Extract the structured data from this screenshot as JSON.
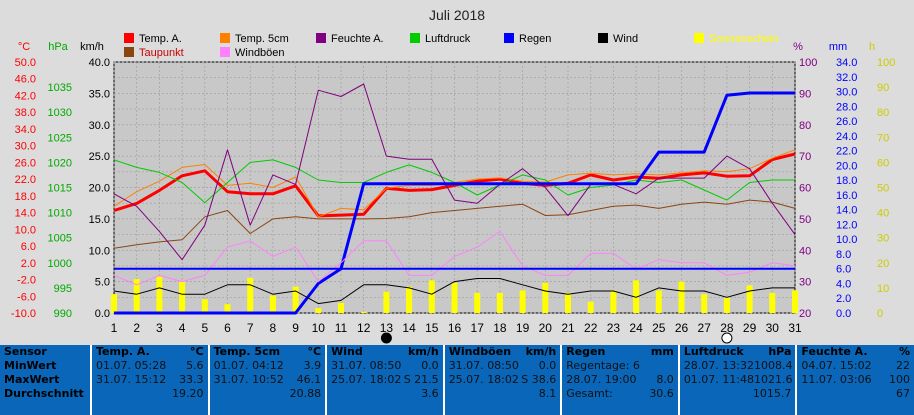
{
  "chart_data": {
    "type": "line",
    "title": "Juli 2018",
    "days": [
      1,
      2,
      3,
      4,
      5,
      6,
      7,
      8,
      9,
      10,
      11,
      12,
      13,
      14,
      15,
      16,
      17,
      18,
      19,
      20,
      21,
      22,
      23,
      24,
      25,
      26,
      27,
      28,
      29,
      30,
      31
    ],
    "axes": {
      "temp": {
        "unit": "°C",
        "min": -10,
        "max": 50,
        "ticks": [
          "50.0",
          "46.0",
          "42.0",
          "38.0",
          "34.0",
          "30.0",
          "26.0",
          "22.0",
          "18.0",
          "14.0",
          "10.0",
          "6.0",
          "2.0",
          "-2.0",
          "-6.0",
          "-10.0"
        ],
        "color": "#ff0000"
      },
      "pressure": {
        "unit": "hPa",
        "min": 990,
        "max": 1040,
        "ticks": [
          "1035",
          "1030",
          "1025",
          "1020",
          "1015",
          "1010",
          "1005",
          "1000",
          "995",
          "990"
        ],
        "color": "#00aa00"
      },
      "wind": {
        "unit": "km/h",
        "min": 0,
        "max": 40,
        "ticks": [
          "40.0",
          "35.0",
          "30.0",
          "25.0",
          "20.0",
          "15.0",
          "10.0",
          "5.0",
          "0.0"
        ],
        "color": "#000000"
      },
      "humidity": {
        "unit": "%",
        "min": 20,
        "max": 100,
        "ticks": [
          "100",
          "90",
          "80",
          "70",
          "60",
          "50",
          "40",
          "30",
          "20"
        ],
        "color": "#800080"
      },
      "rain": {
        "unit": "mm",
        "min": 0,
        "max": 34,
        "ticks": [
          "34.0",
          "32.0",
          "30.0",
          "28.0",
          "26.0",
          "24.0",
          "22.0",
          "20.0",
          "18.0",
          "16.0",
          "14.0",
          "12.0",
          "10.0",
          "8.0",
          "6.0",
          "4.0",
          "2.0",
          "0.0"
        ],
        "color": "#0000ff"
      },
      "sun": {
        "unit": "h",
        "min": 0,
        "max": 100,
        "ticks": [
          "100",
          "90",
          "80",
          "70",
          "60",
          "50",
          "40",
          "30",
          "20",
          "10",
          "0"
        ],
        "color": "#cccc00"
      }
    },
    "legend": [
      {
        "label": "Temp. A.",
        "color": "#ff0000"
      },
      {
        "label": "Temp. 5cm",
        "color": "#ff8000"
      },
      {
        "label": "Feuchte A.",
        "color": "#800080"
      },
      {
        "label": "Luftdruck",
        "color": "#00cc00"
      },
      {
        "label": "Regen",
        "color": "#0000ff"
      },
      {
        "label": "Wind",
        "color": "#000000"
      },
      {
        "label": "Sonnenschein",
        "color": "#ffff00"
      },
      {
        "label": "Taupunkt",
        "color": "#8b4513"
      },
      {
        "label": "Windböen",
        "color": "#ff80ff"
      }
    ],
    "series": [
      {
        "name": "Temp. A.",
        "axis": "temp",
        "color": "#ff0000",
        "width": 3,
        "values": [
          14.5,
          16.2,
          19.3,
          22.8,
          24.0,
          19.0,
          18.5,
          18.5,
          20.4,
          13.2,
          13.4,
          13.6,
          19.8,
          19.3,
          19.5,
          20.5,
          21.5,
          22.0,
          21.0,
          20.5,
          21.0,
          23.0,
          21.8,
          22.5,
          22.2,
          23.0,
          23.5,
          22.7,
          22.8,
          26.7,
          28.0
        ]
      },
      {
        "name": "Temp. 5cm",
        "axis": "temp",
        "color": "#ff8000",
        "width": 1,
        "values": [
          15.5,
          19.0,
          21.5,
          24.8,
          25.5,
          20.5,
          21.0,
          20.0,
          22.5,
          13.0,
          15.0,
          14.7,
          19.8,
          20.5,
          20.5,
          21.2,
          22.0,
          22.3,
          21.5,
          21.3,
          23.0,
          23.4,
          23.0,
          23.3,
          23.0,
          23.5,
          24.0,
          23.8,
          24.5,
          27.0,
          29.0
        ]
      },
      {
        "name": "Taupunkt",
        "axis": "temp",
        "color": "#8b4513",
        "width": 1,
        "values": [
          5.5,
          6.3,
          7.0,
          7.5,
          13.0,
          14.5,
          9.0,
          12.5,
          13.0,
          12.5,
          12.5,
          12.5,
          12.6,
          13.0,
          14.0,
          14.5,
          15.0,
          15.5,
          16.0,
          13.3,
          13.5,
          14.5,
          15.5,
          15.8,
          15.0,
          16.0,
          16.5,
          16.0,
          17.0,
          16.5,
          15.0
        ]
      },
      {
        "name": "Luftdruck",
        "axis": "pressure",
        "color": "#00cc00",
        "width": 1,
        "values": [
          1020.5,
          1019.0,
          1018.0,
          1016.0,
          1012.0,
          1016.0,
          1020.0,
          1020.5,
          1019.0,
          1016.5,
          1016.0,
          1016.0,
          1018.0,
          1019.5,
          1018.0,
          1016.0,
          1013.5,
          1015.5,
          1017.5,
          1016.5,
          1013.5,
          1015.0,
          1015.5,
          1016.5,
          1016.0,
          1016.5,
          1014.5,
          1012.5,
          1016.0,
          1016.5,
          1016.5
        ]
      },
      {
        "name": "Feuchte A.",
        "axis": "humidity",
        "color": "#800080",
        "width": 1,
        "values": [
          58,
          54,
          46,
          37,
          48,
          72,
          48,
          64,
          61,
          91,
          89,
          93,
          70,
          69,
          69,
          56,
          55,
          61,
          66,
          60,
          51,
          61,
          61,
          58,
          63,
          63,
          63,
          70,
          66,
          55,
          45
        ]
      },
      {
        "name": "Regen",
        "axis": "rain",
        "color": "#0000ff",
        "width": 3,
        "values": [
          0,
          0,
          0,
          0,
          0,
          0,
          0,
          0,
          0,
          4.0,
          6.0,
          17.5,
          17.5,
          17.5,
          17.5,
          17.5,
          17.5,
          17.5,
          17.5,
          17.5,
          17.5,
          17.5,
          17.5,
          17.5,
          21.8,
          21.8,
          21.8,
          29.5,
          29.8,
          29.8,
          29.8
        ]
      },
      {
        "name": "Wind",
        "axis": "wind",
        "color": "#000000",
        "width": 1,
        "values": [
          3.5,
          3.0,
          4.0,
          3.0,
          3.0,
          4.5,
          4.5,
          3.0,
          3.5,
          1.5,
          2.0,
          4.5,
          4.5,
          4.0,
          3.0,
          5.0,
          5.5,
          5.5,
          4.5,
          3.5,
          3.0,
          3.5,
          3.5,
          2.5,
          4.0,
          3.5,
          3.5,
          2.5,
          3.5,
          4.0,
          4.0
        ]
      },
      {
        "name": "Windböen",
        "axis": "wind",
        "color": "#ff80ff",
        "width": 1,
        "values": [
          6.0,
          4.5,
          6.0,
          5.0,
          6.0,
          10.5,
          11.5,
          9.0,
          10.5,
          5.0,
          8.0,
          11.5,
          11.5,
          6.0,
          6.0,
          9.0,
          10.5,
          13.0,
          7.5,
          6.0,
          6.0,
          9.5,
          9.5,
          7.0,
          8.5,
          8.0,
          8.0,
          6.0,
          6.5,
          8.0,
          7.5
        ]
      }
    ],
    "sunshine": {
      "axis": "sun",
      "color": "#ffff00",
      "values": [
        7.5,
        13.5,
        14.5,
        12.5,
        5.5,
        3.5,
        14.0,
        7.0,
        10.5,
        2.0,
        4.0,
        0.5,
        8.5,
        10.5,
        13.0,
        12.0,
        8.0,
        8.0,
        9.0,
        12.0,
        8.0,
        4.5,
        9.0,
        13.0,
        9.0,
        12.5,
        7.5,
        6.0,
        11.0,
        8.0,
        9.0
      ]
    },
    "moon_markers": [
      {
        "day": 13,
        "phase": "new-moon"
      },
      {
        "day": 28,
        "phase": "full-moon"
      }
    ]
  },
  "stats": {
    "row_labels": [
      "Sensor",
      "MinWert",
      "MaxWert",
      "Durchschnitt"
    ],
    "columns": [
      {
        "name": "Temp. A.",
        "unit": "°C",
        "min": {
          "date": "01.07.",
          "time": "05:28",
          "value": "5.6"
        },
        "max": {
          "date": "31.07.",
          "time": "15:12",
          "value": "33.3"
        },
        "avg": "19.20"
      },
      {
        "name": "Temp. 5cm",
        "unit": "°C",
        "min": {
          "date": "01.07.",
          "time": "04:12",
          "value": "3.9"
        },
        "max": {
          "date": "31.07.",
          "time": "10:52",
          "value": "46.1"
        },
        "avg": "20.88"
      },
      {
        "name": "Wind",
        "unit": "km/h",
        "min": {
          "date": "31.07.",
          "time": "08:50",
          "value": "0.0"
        },
        "max": {
          "date": "25.07.",
          "time": "18:02",
          "value": "S 21.5"
        },
        "avg": "3.6"
      },
      {
        "name": "Windböen",
        "unit": "km/h",
        "min": {
          "date": "31.07.",
          "time": "08:50",
          "value": "0.0"
        },
        "max": {
          "date": "25.07.",
          "time": "18:02",
          "value": "S 38.6"
        },
        "avg": "8.1"
      },
      {
        "name": "Regen",
        "unit": "mm",
        "min": {
          "date": "Regentage: 6",
          "time": "",
          "value": ""
        },
        "max": {
          "date": "28.07.",
          "time": "19:00",
          "value": "8.0"
        },
        "avg_label": "Gesamt:",
        "avg": "30.6"
      },
      {
        "name": "Luftdruck",
        "unit": "hPa",
        "min": {
          "date": "28.07.",
          "time": "13:32",
          "value": "1008.4"
        },
        "max": {
          "date": "01.07.",
          "time": "11:48",
          "value": "1021.6"
        },
        "avg": "1015.7"
      },
      {
        "name": "Feuchte A.",
        "unit": "%",
        "min": {
          "date": "04.07.",
          "time": "15:02",
          "value": "22"
        },
        "max": {
          "date": "11.07.",
          "time": "03:06",
          "value": "100"
        },
        "avg": "67"
      }
    ]
  }
}
